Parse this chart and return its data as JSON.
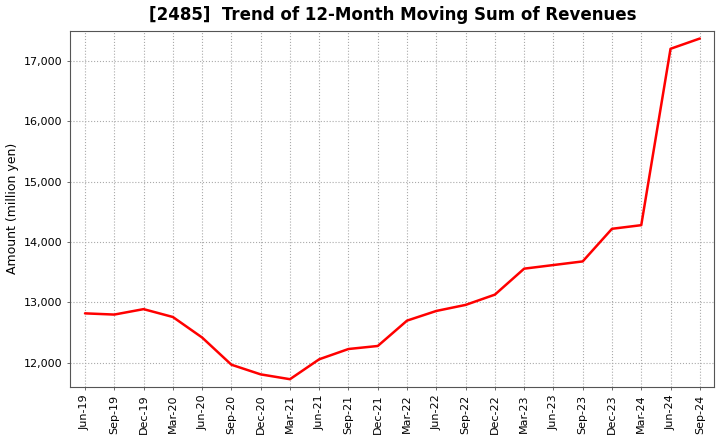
{
  "title": "[2485]  Trend of 12-Month Moving Sum of Revenues",
  "ylabel": "Amount (million yen)",
  "line_color": "#ff0000",
  "line_width": 1.8,
  "background_color": "#ffffff",
  "grid_color": "#aaaaaa",
  "ylim": [
    11600,
    17500
  ],
  "yticks": [
    12000,
    13000,
    14000,
    15000,
    16000,
    17000
  ],
  "x_labels": [
    "Jun-19",
    "Sep-19",
    "Dec-19",
    "Mar-20",
    "Jun-20",
    "Sep-20",
    "Dec-20",
    "Mar-21",
    "Jun-21",
    "Sep-21",
    "Dec-21",
    "Mar-22",
    "Jun-22",
    "Sep-22",
    "Dec-22",
    "Mar-23",
    "Jun-23",
    "Sep-23",
    "Dec-23",
    "Mar-24",
    "Jun-24",
    "Sep-24"
  ],
  "values": [
    12820,
    12800,
    12890,
    12760,
    12420,
    11970,
    11810,
    11730,
    12060,
    12230,
    12280,
    12700,
    12860,
    12960,
    13130,
    13560,
    13620,
    13680,
    14220,
    14280,
    17200,
    17370
  ],
  "title_fontsize": 12,
  "ylabel_fontsize": 9,
  "tick_fontsize": 8
}
